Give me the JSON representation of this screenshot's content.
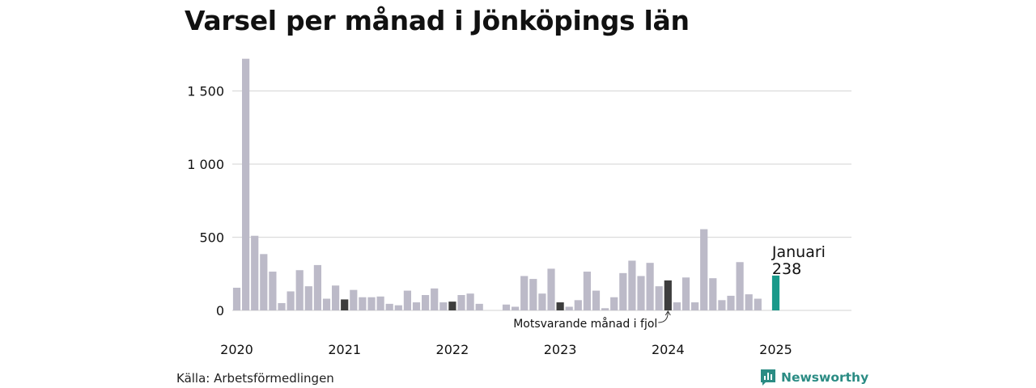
{
  "title": "Varsel per månad i Jönköpings län",
  "source": "Källa: Arbetsförmedlingen",
  "brand": "Newsworthy",
  "colors": {
    "default": "#bcbac8",
    "previous_year": "#3d3d3d",
    "current": "#19998a",
    "brand": "#2b8c84",
    "grid": "#dcdcdc"
  },
  "chart_data": {
    "type": "bar",
    "title": "Varsel per månad i Jönköpings län",
    "xlabel": "",
    "ylabel": "",
    "ylim": [
      0,
      1750
    ],
    "yticks": [
      0,
      500,
      1000,
      1500
    ],
    "ytick_labels": [
      "0",
      "500",
      "1 000",
      "1 500"
    ],
    "xtick_labels": [
      "2020",
      "2021",
      "2022",
      "2023",
      "2024",
      "2025"
    ],
    "grid": true,
    "start": "2020-01",
    "months": [
      "2020-01",
      "2020-02",
      "2020-03",
      "2020-04",
      "2020-05",
      "2020-06",
      "2020-07",
      "2020-08",
      "2020-09",
      "2020-10",
      "2020-11",
      "2020-12",
      "2021-01",
      "2021-02",
      "2021-03",
      "2021-04",
      "2021-05",
      "2021-06",
      "2021-07",
      "2021-08",
      "2021-09",
      "2021-10",
      "2021-11",
      "2021-12",
      "2022-01",
      "2022-02",
      "2022-03",
      "2022-04",
      "2022-05",
      "2022-06",
      "2022-07",
      "2022-08",
      "2022-09",
      "2022-10",
      "2022-11",
      "2022-12",
      "2023-01",
      "2023-02",
      "2023-03",
      "2023-04",
      "2023-05",
      "2023-06",
      "2023-07",
      "2023-08",
      "2023-09",
      "2023-10",
      "2023-11",
      "2023-12",
      "2024-01",
      "2024-02",
      "2024-03",
      "2024-04",
      "2024-05",
      "2024-06",
      "2024-07",
      "2024-08",
      "2024-09",
      "2024-10",
      "2024-11",
      "2024-12",
      "2025-01"
    ],
    "values": [
      155,
      1720,
      510,
      385,
      265,
      50,
      130,
      275,
      165,
      310,
      80,
      170,
      75,
      140,
      90,
      90,
      95,
      45,
      35,
      135,
      55,
      105,
      150,
      55,
      60,
      105,
      115,
      45,
      0,
      0,
      40,
      25,
      235,
      215,
      115,
      285,
      55,
      25,
      70,
      265,
      135,
      15,
      90,
      255,
      340,
      235,
      325,
      165,
      205,
      55,
      225,
      55,
      555,
      220,
      70,
      100,
      330,
      110,
      80,
      0,
      238
    ],
    "highlight_previous_years": [
      "2021-01",
      "2022-01",
      "2023-01",
      "2024-01"
    ],
    "highlight_current": "2025-01",
    "annotations": {
      "current_label": "Januari",
      "current_value": "238",
      "previous_year_label": "Motsvarande månad i fjol"
    }
  }
}
